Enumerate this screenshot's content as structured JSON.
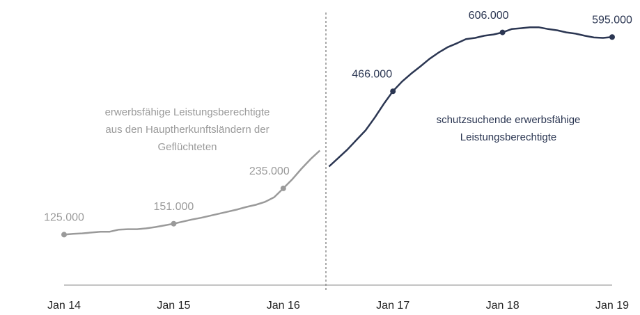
{
  "chart_data": {
    "type": "line",
    "xticks": [
      {
        "value": "2014-01",
        "label": "Jan 14"
      },
      {
        "value": "2015-01",
        "label": "Jan 15"
      },
      {
        "value": "2016-01",
        "label": "Jan 16"
      },
      {
        "value": "2017-01",
        "label": "Jan 17"
      },
      {
        "value": "2018-01",
        "label": "Jan 18"
      },
      {
        "value": "2019-01",
        "label": "Jan 19"
      }
    ],
    "xlim": [
      "2014-01",
      "2019-01"
    ],
    "ylim": [
      0,
      650000
    ],
    "series": [
      {
        "name": "erwerbsfähige Leistungsberechtigte aus den Hauptherkunftsländern der Geflüchteten",
        "color": "#9a9a9a",
        "x": [
          "2014-01",
          "2014-02",
          "2014-03",
          "2014-04",
          "2014-05",
          "2014-06",
          "2014-07",
          "2014-08",
          "2014-09",
          "2014-10",
          "2014-11",
          "2014-12",
          "2015-01",
          "2015-02",
          "2015-03",
          "2015-04",
          "2015-05",
          "2015-06",
          "2015-07",
          "2015-08",
          "2015-09",
          "2015-10",
          "2015-11",
          "2015-12",
          "2016-01",
          "2016-02",
          "2016-03",
          "2016-04",
          "2016-05"
        ],
        "values": [
          125000,
          127000,
          128000,
          130000,
          132000,
          132000,
          137000,
          138000,
          138000,
          140000,
          143000,
          147000,
          151000,
          156000,
          161000,
          165000,
          170000,
          175000,
          180000,
          185000,
          191000,
          196000,
          203000,
          214000,
          235000,
          257000,
          282000,
          305000,
          325000
        ],
        "value_labels": [
          "125.000",
          null,
          null,
          null,
          null,
          null,
          null,
          null,
          null,
          null,
          null,
          null,
          "151.000",
          null,
          null,
          null,
          null,
          null,
          null,
          null,
          null,
          null,
          null,
          null,
          "235.000",
          null,
          null,
          null,
          null
        ]
      },
      {
        "name": "schutzsuchende erwerbsfähige Leistungsberechtigte",
        "color": "#2b3652",
        "x": [
          "2016-06",
          "2016-07",
          "2016-08",
          "2016-09",
          "2016-10",
          "2016-11",
          "2016-12",
          "2017-01",
          "2017-02",
          "2017-03",
          "2017-04",
          "2017-05",
          "2017-06",
          "2017-07",
          "2017-08",
          "2017-09",
          "2017-10",
          "2017-11",
          "2017-12",
          "2018-01",
          "2018-02",
          "2018-03",
          "2018-04",
          "2018-05",
          "2018-06",
          "2018-07",
          "2018-08",
          "2018-09",
          "2018-10",
          "2018-11",
          "2018-12",
          "2019-01"
        ],
        "values": [
          287000,
          307000,
          327000,
          350000,
          373000,
          403000,
          436000,
          466000,
          489000,
          508000,
          525000,
          543000,
          558000,
          571000,
          580000,
          590000,
          593000,
          598000,
          601000,
          606000,
          614000,
          616000,
          618000,
          618000,
          614000,
          611000,
          606000,
          603000,
          598000,
          594000,
          593000,
          595000
        ],
        "value_labels": [
          null,
          null,
          null,
          null,
          null,
          null,
          null,
          "466.000",
          null,
          null,
          null,
          null,
          null,
          null,
          null,
          null,
          null,
          null,
          null,
          "606.000",
          null,
          null,
          null,
          null,
          null,
          null,
          null,
          null,
          null,
          null,
          null,
          "595.000"
        ]
      }
    ],
    "annotations": [
      {
        "lines": [
          "erwerbsfähige Leistungsberechtigte",
          "aus den Hauptherkunftsländern der",
          "Geflüchteten"
        ],
        "color": "#9a9a9a"
      },
      {
        "lines": [
          "schutzsuchende erwerbsfähige",
          "Leistungsberechtigte"
        ],
        "color": "#2b3652"
      }
    ]
  }
}
